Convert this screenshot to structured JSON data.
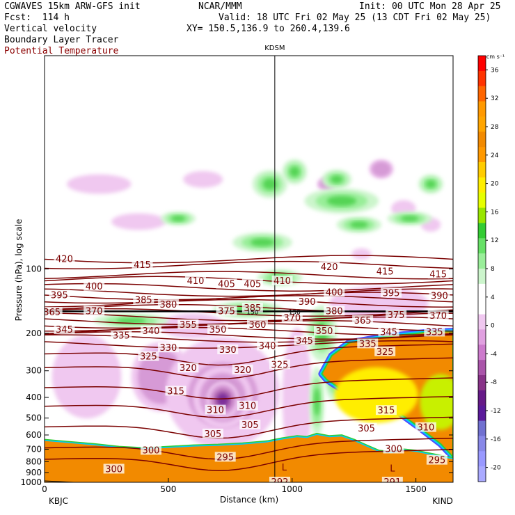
{
  "header": {
    "model": "CGWAVES 15km ARW-GFS init",
    "forecast": "Fcst:  114 h",
    "field1": "Vertical velocity",
    "field2": "Boundary Layer Tracer",
    "field3": "Potential Temperature",
    "center": "NCAR/MMM",
    "init": "Init: 00 UTC Mon 28 Apr 25",
    "valid": "Valid: 18 UTC Fri 02 May 25 (13 CDT Fri 02 May 25)",
    "xy": "XY= 150.5,136.9 to 260.4,139.6"
  },
  "colors": {
    "theta_line": "#7a0000",
    "terrain": "#f28a00",
    "frame": "#000000"
  },
  "chart_data": {
    "type": "heatmap",
    "title": "Vertical velocity",
    "xlabel": "Distance (km)",
    "ylabel": "Pressure (hPa), log scale",
    "xlim": [
      0,
      1650
    ],
    "ylim": [
      1000,
      10
    ],
    "x_ticks": [
      "0",
      "500",
      "1000",
      "1500"
    ],
    "x_tick_values": [
      0,
      500,
      1000,
      1500
    ],
    "y_ticks": [
      "100",
      "200",
      "300",
      "400",
      "500",
      "600",
      "700",
      "800",
      "900",
      "1000"
    ],
    "y_tick_values": [
      100,
      200,
      300,
      400,
      500,
      600,
      700,
      800,
      900,
      1000
    ],
    "station_left": "KBJC",
    "station_right": "KIND",
    "station_mid": "KDSM",
    "station_mid_x": 930,
    "colorbar": {
      "unit": "cm s⁻¹",
      "tick_labels": [
        "36",
        "32",
        "28",
        "24",
        "20",
        "16",
        "12",
        "8",
        "4",
        "0",
        "-4",
        "-8",
        "-12",
        "-16",
        "-20"
      ],
      "tick_values": [
        36,
        32,
        28,
        24,
        20,
        16,
        12,
        8,
        4,
        0,
        -4,
        -8,
        -12,
        -16,
        -20
      ],
      "colors": [
        "#ff0000",
        "#ff3300",
        "#ff6600",
        "#ff9900",
        "#ffa500",
        "#f28a00",
        "#ff9900",
        "#ffcc00",
        "#ffee00",
        "#e6ff00",
        "#99e600",
        "#33cc33",
        "#66e066",
        "#99ee99",
        "#ccf5cc",
        "#ffffff",
        "#ffffff",
        "#f0c8f0",
        "#e0a0e0",
        "#cc7acc",
        "#aa55aa",
        "#883388",
        "#661a88",
        "#5a1a9a",
        "#7070d0",
        "#8888e8",
        "#9999ff",
        "#aaaaff"
      ]
    },
    "theta_contours": [
      {
        "value": 420,
        "p": 90
      },
      {
        "value": 415,
        "p": 96
      },
      {
        "value": 410,
        "p": 107
      },
      {
        "value": 405,
        "p": 113
      },
      {
        "value": 400,
        "p": 122
      },
      {
        "value": 395,
        "p": 129
      },
      {
        "value": 390,
        "p": 134
      },
      {
        "value": 385,
        "p": 139
      },
      {
        "value": 380,
        "p": 145
      },
      {
        "value": 375,
        "p": 153
      },
      {
        "value": 370,
        "p": 160
      },
      {
        "value": 365,
        "p": 168
      },
      {
        "value": 360,
        "p": 175
      },
      {
        "value": 355,
        "p": 182
      },
      {
        "value": 350,
        "p": 188
      },
      {
        "value": 345,
        "p": 196
      },
      {
        "value": 340,
        "p": 205
      },
      {
        "value": 335,
        "p": 212
      },
      {
        "value": 330,
        "p": 226
      },
      {
        "value": 325,
        "p": 250
      },
      {
        "value": 320,
        "p": 290
      },
      {
        "value": 315,
        "p": 360
      },
      {
        "value": 310,
        "p": 440
      },
      {
        "value": 305,
        "p": 550
      },
      {
        "value": 300,
        "p": 690
      },
      {
        "value": 295,
        "p": 780
      }
    ],
    "theta_labels": [
      {
        "text": "420",
        "x": 80,
        "p": 90
      },
      {
        "text": "415",
        "x": 395,
        "p": 96
      },
      {
        "text": "420",
        "x": 1150,
        "p": 98
      },
      {
        "text": "415",
        "x": 1375,
        "p": 103
      },
      {
        "text": "415",
        "x": 1590,
        "p": 106
      },
      {
        "text": "400",
        "x": 200,
        "p": 121
      },
      {
        "text": "410",
        "x": 610,
        "p": 114
      },
      {
        "text": "405",
        "x": 735,
        "p": 118
      },
      {
        "text": "405",
        "x": 840,
        "p": 118
      },
      {
        "text": "410",
        "x": 960,
        "p": 114
      },
      {
        "text": "400",
        "x": 1170,
        "p": 129
      },
      {
        "text": "395",
        "x": 1400,
        "p": 130
      },
      {
        "text": "390",
        "x": 1595,
        "p": 134
      },
      {
        "text": "395",
        "x": 60,
        "p": 133
      },
      {
        "text": "385",
        "x": 400,
        "p": 140
      },
      {
        "text": "380",
        "x": 500,
        "p": 147
      },
      {
        "text": "390",
        "x": 1060,
        "p": 143
      },
      {
        "text": "375",
        "x": 735,
        "p": 158
      },
      {
        "text": "385",
        "x": 840,
        "p": 153
      },
      {
        "text": "370",
        "x": 200,
        "p": 158
      },
      {
        "text": "365",
        "x": 30,
        "p": 160
      },
      {
        "text": "380",
        "x": 1170,
        "p": 158
      },
      {
        "text": "375",
        "x": 1420,
        "p": 165
      },
      {
        "text": "370",
        "x": 1590,
        "p": 166
      },
      {
        "text": "370",
        "x": 1000,
        "p": 170
      },
      {
        "text": "365",
        "x": 1285,
        "p": 175
      },
      {
        "text": "355",
        "x": 580,
        "p": 183
      },
      {
        "text": "360",
        "x": 860,
        "p": 183
      },
      {
        "text": "345",
        "x": 80,
        "p": 193
      },
      {
        "text": "340",
        "x": 430,
        "p": 196
      },
      {
        "text": "350",
        "x": 700,
        "p": 193
      },
      {
        "text": "350",
        "x": 1130,
        "p": 196
      },
      {
        "text": "345",
        "x": 1390,
        "p": 198
      },
      {
        "text": "335",
        "x": 1575,
        "p": 198
      },
      {
        "text": "335",
        "x": 310,
        "p": 206
      },
      {
        "text": "345",
        "x": 1050,
        "p": 218
      },
      {
        "text": "335",
        "x": 1305,
        "p": 225
      },
      {
        "text": "340",
        "x": 900,
        "p": 230
      },
      {
        "text": "330",
        "x": 500,
        "p": 235
      },
      {
        "text": "330",
        "x": 740,
        "p": 240
      },
      {
        "text": "325",
        "x": 420,
        "p": 258
      },
      {
        "text": "325",
        "x": 1375,
        "p": 245
      },
      {
        "text": "325",
        "x": 950,
        "p": 282
      },
      {
        "text": "320",
        "x": 580,
        "p": 292
      },
      {
        "text": "320",
        "x": 800,
        "p": 298
      },
      {
        "text": "315",
        "x": 530,
        "p": 375
      },
      {
        "text": "315",
        "x": 1380,
        "p": 462
      },
      {
        "text": "310",
        "x": 690,
        "p": 460
      },
      {
        "text": "310",
        "x": 820,
        "p": 440
      },
      {
        "text": "310",
        "x": 1540,
        "p": 555
      },
      {
        "text": "305",
        "x": 830,
        "p": 540
      },
      {
        "text": "305",
        "x": 680,
        "p": 595
      },
      {
        "text": "305",
        "x": 1300,
        "p": 560
      },
      {
        "text": "300",
        "x": 430,
        "p": 710
      },
      {
        "text": "300",
        "x": 1410,
        "p": 700
      },
      {
        "text": "295",
        "x": 730,
        "p": 765
      },
      {
        "text": "295",
        "x": 1585,
        "p": 790
      },
      {
        "text": "300",
        "x": 280,
        "p": 870
      },
      {
        "text": "292",
        "x": 950,
        "p": 1000
      },
      {
        "text": "291",
        "x": 1405,
        "p": 1000
      }
    ],
    "tropopause_label": {
      "text": "150",
      "left_x": 840,
      "right_x": 1010,
      "p": 158
    },
    "low_marks": [
      {
        "text": "L",
        "x": 968,
        "p": 880
      },
      {
        "text": "L",
        "x": 1405,
        "p": 890
      }
    ],
    "ascent_regions": [
      {
        "cx": 910,
        "p": 40,
        "rx": 70,
        "ry": 20
      },
      {
        "cx": 1010,
        "p": 35,
        "rx": 50,
        "ry": 18
      },
      {
        "cx": 1180,
        "p": 38,
        "rx": 60,
        "ry": 14
      },
      {
        "cx": 1560,
        "p": 40,
        "rx": 50,
        "ry": 14
      },
      {
        "cx": 1200,
        "p": 48,
        "rx": 150,
        "ry": 18
      },
      {
        "cx": 1270,
        "p": 62,
        "rx": 90,
        "ry": 12
      },
      {
        "cx": 1475,
        "p": 58,
        "rx": 90,
        "ry": 10
      },
      {
        "cx": 540,
        "p": 58,
        "rx": 70,
        "ry": 10
      },
      {
        "cx": 880,
        "p": 75,
        "rx": 120,
        "ry": 14
      },
      {
        "cx": 950,
        "p": 110,
        "rx": 90,
        "ry": 12
      },
      {
        "cx": 1120,
        "p": 200,
        "rx": 60,
        "ry": 40
      },
      {
        "cx": 1170,
        "p": 320,
        "rx": 40,
        "ry": 35
      },
      {
        "cx": 1100,
        "p": 420,
        "rx": 30,
        "ry": 50
      },
      {
        "cx": 820,
        "p": 155,
        "rx": 140,
        "ry": 12
      },
      {
        "cx": 350,
        "p": 175,
        "rx": 150,
        "ry": 10
      }
    ],
    "descent_regions": [
      {
        "cx": 1360,
        "p": 34,
        "rx": 50,
        "ry": 14,
        "level": 2
      },
      {
        "cx": 1140,
        "p": 40,
        "rx": 40,
        "ry": 10,
        "level": 2
      },
      {
        "cx": 1450,
        "p": 52,
        "rx": 50,
        "ry": 12,
        "level": 1
      },
      {
        "cx": 1560,
        "p": 62,
        "rx": 40,
        "ry": 10,
        "level": 1
      },
      {
        "cx": 1280,
        "p": 85,
        "rx": 40,
        "ry": 8,
        "level": 1
      },
      {
        "cx": 220,
        "p": 40,
        "rx": 130,
        "ry": 14,
        "level": 1
      },
      {
        "cx": 640,
        "p": 38,
        "rx": 80,
        "ry": 12,
        "level": 1
      },
      {
        "cx": 380,
        "p": 60,
        "rx": 110,
        "ry": 12,
        "level": 1
      },
      {
        "cx": 170,
        "p": 320,
        "rx": 140,
        "ry": 60,
        "level": 1
      },
      {
        "cx": 470,
        "p": 320,
        "rx": 120,
        "ry": 50,
        "level": 2
      },
      {
        "cx": 720,
        "p": 380,
        "rx": 230,
        "ry": 80,
        "level": 1
      },
      {
        "cx": 720,
        "p": 390,
        "rx": 180,
        "ry": 60,
        "level": 2
      },
      {
        "cx": 720,
        "p": 400,
        "rx": 120,
        "ry": 45,
        "level": 3
      },
      {
        "cx": 720,
        "p": 410,
        "rx": 70,
        "ry": 28,
        "level": 4
      },
      {
        "cx": 1020,
        "p": 400,
        "rx": 60,
        "ry": 100,
        "level": 1
      },
      {
        "cx": 1350,
        "p": 145,
        "rx": 200,
        "ry": 25,
        "level": 1
      },
      {
        "cx": 600,
        "p": 185,
        "rx": 130,
        "ry": 18,
        "level": 1
      }
    ],
    "tracer_region": {
      "description": "",
      "upper": [
        [
          1120,
          310
        ],
        [
          1160,
          255
        ],
        [
          1230,
          222
        ],
        [
          1330,
          212
        ],
        [
          1420,
          205
        ],
        [
          1550,
          198
        ],
        [
          1650,
          196
        ]
      ],
      "lower": [
        [
          1650,
          760
        ],
        [
          1600,
          660
        ],
        [
          1520,
          560
        ],
        [
          1430,
          470
        ],
        [
          1330,
          420
        ],
        [
          1250,
          390
        ],
        [
          1190,
          360
        ],
        [
          1140,
          330
        ]
      ]
    },
    "terrain_top": [
      [
        0,
        640
      ],
      [
        100,
        655
      ],
      [
        200,
        670
      ],
      [
        300,
        690
      ],
      [
        400,
        700
      ],
      [
        500,
        690
      ],
      [
        600,
        680
      ],
      [
        700,
        675
      ],
      [
        800,
        665
      ],
      [
        900,
        650
      ],
      [
        960,
        630
      ],
      [
        1020,
        615
      ],
      [
        1060,
        620
      ],
      [
        1100,
        600
      ],
      [
        1150,
        615
      ],
      [
        1200,
        610
      ],
      [
        1250,
        640
      ],
      [
        1300,
        680
      ],
      [
        1350,
        720
      ],
      [
        1400,
        730
      ],
      [
        1450,
        710
      ],
      [
        1500,
        720
      ],
      [
        1550,
        740
      ],
      [
        1600,
        760
      ],
      [
        1650,
        780
      ]
    ]
  }
}
